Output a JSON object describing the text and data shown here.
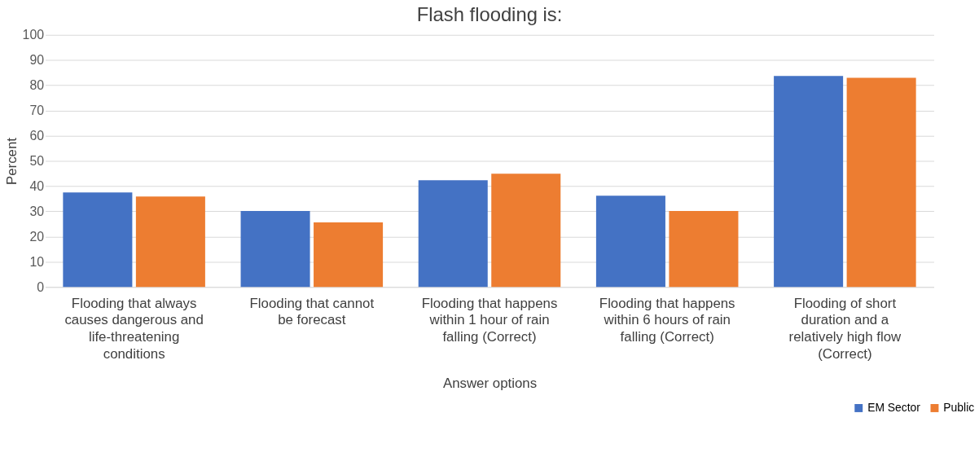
{
  "chart_data": {
    "type": "bar",
    "title": "Flash flooding is:",
    "xlabel": "Answer options",
    "ylabel": "Percent",
    "categories": [
      "Flooding that always causes dangerous and life-threatening conditions",
      "Flooding that cannot be forecast",
      "Flooding that happens within 1 hour of rain falling (Correct)",
      "Flooding that happens within 6 hours of rain falling (Correct)",
      "Flooding of short duration and a relatively high flow (Correct)"
    ],
    "series": [
      {
        "name": "EM Sector",
        "color": "#4472c4",
        "values": [
          37.5,
          30.1,
          42.3,
          36.2,
          83.7
        ]
      },
      {
        "name": "Public",
        "color": "#ed7d31",
        "values": [
          35.9,
          25.6,
          44.9,
          30.1,
          83.0
        ]
      }
    ],
    "ylim": [
      0,
      100
    ],
    "yticks": [
      0,
      10,
      20,
      30,
      40,
      50,
      60,
      70,
      80,
      90,
      100
    ],
    "grid": "y",
    "legend": "bottom right"
  }
}
